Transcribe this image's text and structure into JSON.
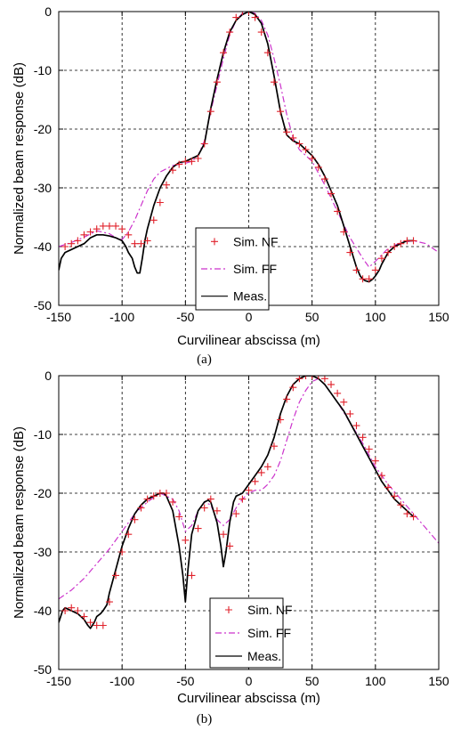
{
  "chart_data": [
    {
      "type": "line",
      "caption": "(a)",
      "xlabel": "Curvilinear abscissa (m)",
      "ylabel": "Normalized beam response (dB)",
      "xlim": [
        -150,
        150
      ],
      "ylim": [
        -50,
        0
      ],
      "xticks": [
        -150,
        -100,
        -50,
        0,
        50,
        100,
        150
      ],
      "yticks": [
        0,
        -10,
        -20,
        -30,
        -40,
        -50
      ],
      "grid": true,
      "legend_position": "bottom-center",
      "series": [
        {
          "name": "Sim. NF",
          "style": "markers-plus",
          "color": "#e0202a",
          "x": [
            -145,
            -140,
            -135,
            -130,
            -125,
            -120,
            -115,
            -110,
            -105,
            -100,
            -95,
            -90,
            -85,
            -80,
            -75,
            -70,
            -65,
            -60,
            -55,
            -50,
            -45,
            -40,
            -35,
            -30,
            -25,
            -20,
            -15,
            -10,
            -5,
            0,
            5,
            10,
            15,
            20,
            25,
            30,
            35,
            40,
            45,
            50,
            55,
            60,
            65,
            70,
            75,
            80,
            85,
            90,
            95,
            100,
            105,
            110,
            115,
            120,
            125,
            130
          ],
          "y": [
            -40,
            -39.5,
            -39,
            -38,
            -37.5,
            -37,
            -36.5,
            -36.5,
            -36.5,
            -37,
            -38,
            -39.5,
            -39.5,
            -39,
            -35.5,
            -32.5,
            -29.5,
            -27,
            -26,
            -25.5,
            -25.5,
            -25,
            -22.5,
            -17,
            -12,
            -7,
            -3.5,
            -1,
            0,
            0,
            -1,
            -3.5,
            -7,
            -12,
            -17,
            -20.5,
            -21.5,
            -22.5,
            -23.5,
            -25,
            -26.5,
            -28.5,
            -31,
            -34,
            -37.5,
            -41,
            -44,
            -45.5,
            -45.5,
            -44,
            -42,
            -41,
            -40,
            -39.5,
            -39,
            -39
          ]
        },
        {
          "name": "Sim. FF",
          "style": "dash-dot",
          "color": "#cc33cc",
          "x": [
            -150,
            -140,
            -130,
            -120,
            -110,
            -105,
            -100,
            -95,
            -90,
            -85,
            -80,
            -75,
            -70,
            -60,
            -50,
            -45,
            -40,
            -35,
            -30,
            -25,
            -20,
            -15,
            -10,
            -5,
            0,
            5,
            10,
            15,
            20,
            25,
            30,
            35,
            40,
            50,
            60,
            70,
            80,
            90,
            95,
            100,
            110,
            120,
            130,
            140,
            150
          ],
          "y": [
            -40,
            -39.3,
            -38.4,
            -37.3,
            -37.8,
            -38.5,
            -38.8,
            -37.5,
            -35.5,
            -33,
            -30.5,
            -28.5,
            -27.3,
            -26.2,
            -25.8,
            -25.5,
            -24.5,
            -22,
            -17,
            -12.5,
            -8,
            -4,
            -1.5,
            -0.3,
            0,
            -0.3,
            -1.5,
            -4,
            -8,
            -12.5,
            -17.5,
            -21.5,
            -23.5,
            -25.5,
            -29.5,
            -34,
            -38.5,
            -42,
            -43.5,
            -42.5,
            -40.3,
            -39.3,
            -39,
            -39.5,
            -41
          ]
        },
        {
          "name": "Meas.",
          "style": "solid",
          "color": "#000000",
          "x": [
            -150,
            -148,
            -145,
            -140,
            -135,
            -130,
            -125,
            -120,
            -115,
            -110,
            -105,
            -100,
            -97,
            -95,
            -92,
            -90,
            -88,
            -86,
            -84,
            -82,
            -80,
            -75,
            -70,
            -65,
            -60,
            -55,
            -50,
            -45,
            -40,
            -35,
            -30,
            -25,
            -20,
            -15,
            -10,
            -5,
            0,
            5,
            10,
            15,
            20,
            25,
            30,
            35,
            40,
            45,
            50,
            55,
            60,
            65,
            70,
            75,
            80,
            85,
            88,
            90,
            92,
            95,
            98,
            100,
            103,
            105,
            110,
            115,
            120,
            125,
            130
          ],
          "y": [
            -44,
            -42,
            -41,
            -40.5,
            -40,
            -39.5,
            -38.5,
            -38,
            -38,
            -38.2,
            -38.5,
            -39,
            -40,
            -41,
            -42,
            -43.5,
            -44.5,
            -44.5,
            -42,
            -39,
            -37,
            -33,
            -30,
            -28,
            -26.5,
            -25.7,
            -25.5,
            -25,
            -24.5,
            -22.5,
            -16.5,
            -11.5,
            -7,
            -3.5,
            -1.5,
            -0.5,
            0,
            -0.5,
            -2,
            -5.5,
            -11,
            -17,
            -21,
            -22,
            -22.5,
            -23.5,
            -24.5,
            -26,
            -28,
            -30.5,
            -33,
            -36.5,
            -40,
            -43.5,
            -45,
            -45.5,
            -45.8,
            -46,
            -45.5,
            -45,
            -44,
            -43,
            -41,
            -40,
            -39.5,
            -39,
            -39
          ]
        }
      ]
    },
    {
      "type": "line",
      "caption": "(b)",
      "xlabel": "Curvilinear abscissa (m)",
      "ylabel": "Normalized beam response (dB)",
      "xlim": [
        -150,
        150
      ],
      "ylim": [
        -50,
        0
      ],
      "xticks": [
        -150,
        -100,
        -50,
        0,
        50,
        100,
        150
      ],
      "yticks": [
        0,
        -10,
        -20,
        -30,
        -40,
        -50
      ],
      "grid": true,
      "legend_position": "bottom-left",
      "series": [
        {
          "name": "Sim. NF",
          "style": "markers-plus",
          "color": "#e0202a",
          "x": [
            -145,
            -140,
            -135,
            -130,
            -125,
            -120,
            -115,
            -110,
            -105,
            -100,
            -95,
            -90,
            -85,
            -80,
            -75,
            -70,
            -65,
            -60,
            -55,
            -50,
            -45,
            -40,
            -35,
            -30,
            -25,
            -20,
            -15,
            -10,
            -5,
            0,
            5,
            10,
            15,
            20,
            25,
            30,
            35,
            40,
            45,
            50,
            55,
            60,
            65,
            70,
            75,
            80,
            85,
            90,
            95,
            100,
            105,
            110,
            115,
            120,
            125,
            130
          ],
          "y": [
            -40,
            -39.5,
            -40,
            -41,
            -42,
            -42.5,
            -42.5,
            -38.5,
            -34,
            -30,
            -27,
            -24.5,
            -22.5,
            -21,
            -20.5,
            -20,
            -20,
            -21.5,
            -24,
            -28,
            -34,
            -26,
            -22.5,
            -21,
            -23,
            -27,
            -29,
            -23.5,
            -21,
            -19.5,
            -18,
            -16.5,
            -15.5,
            -12,
            -7.5,
            -4,
            -2,
            -0.5,
            0,
            0,
            0,
            -0.5,
            -1.5,
            -3,
            -4.5,
            -6.5,
            -8.5,
            -10.5,
            -12.5,
            -14.5,
            -17,
            -19,
            -20.5,
            -22,
            -23.5,
            -24
          ]
        },
        {
          "name": "Sim. FF",
          "style": "dash-dot",
          "color": "#cc33cc",
          "x": [
            -150,
            -140,
            -130,
            -120,
            -110,
            -100,
            -90,
            -80,
            -70,
            -60,
            -55,
            -50,
            -45,
            -40,
            -35,
            -30,
            -25,
            -20,
            -15,
            -10,
            -5,
            0,
            5,
            10,
            15,
            20,
            25,
            30,
            35,
            40,
            45,
            50,
            55,
            60,
            70,
            80,
            90,
            100,
            110,
            120,
            130,
            140,
            150
          ],
          "y": [
            -38,
            -36.5,
            -34.5,
            -32,
            -29.5,
            -26.5,
            -23.5,
            -21.5,
            -20,
            -21,
            -23,
            -26.5,
            -25.5,
            -23,
            -21.5,
            -22,
            -24.5,
            -25.5,
            -24.5,
            -22.5,
            -21,
            -20,
            -19.5,
            -19.5,
            -18.5,
            -17,
            -14.5,
            -11,
            -7.5,
            -4.5,
            -2.5,
            -1,
            -0.5,
            -1.5,
            -4.5,
            -8,
            -11.5,
            -15.5,
            -18.5,
            -21,
            -23.5,
            -26,
            -28.5
          ]
        },
        {
          "name": "Meas.",
          "style": "solid",
          "color": "#000000",
          "x": [
            -150,
            -147,
            -145,
            -140,
            -135,
            -130,
            -127,
            -125,
            -122,
            -120,
            -117,
            -115,
            -112,
            -110,
            -105,
            -100,
            -95,
            -90,
            -85,
            -80,
            -75,
            -70,
            -67,
            -65,
            -60,
            -55,
            -52,
            -50,
            -48,
            -45,
            -40,
            -35,
            -32,
            -30,
            -25,
            -22,
            -20,
            -18,
            -15,
            -12,
            -10,
            -5,
            0,
            5,
            10,
            15,
            20,
            25,
            30,
            35,
            40,
            45,
            50,
            55,
            60,
            65,
            70,
            75,
            80,
            85,
            90,
            95,
            100,
            105,
            110,
            115,
            120,
            125,
            130
          ],
          "y": [
            -42,
            -40,
            -39.5,
            -40,
            -40.5,
            -41.5,
            -42.5,
            -43,
            -42,
            -41,
            -40.5,
            -40,
            -39,
            -37,
            -33,
            -29,
            -26,
            -23.5,
            -22,
            -21,
            -20.5,
            -20,
            -20,
            -20.5,
            -23,
            -29,
            -34,
            -38.5,
            -33,
            -27,
            -23,
            -21.5,
            -21.2,
            -21.5,
            -25,
            -29,
            -32.5,
            -30,
            -25,
            -21.5,
            -20.5,
            -20,
            -18.5,
            -17,
            -15.5,
            -13.5,
            -10.5,
            -6.5,
            -3.5,
            -1.5,
            -0.5,
            0,
            0,
            -0.5,
            -1.5,
            -3,
            -4.5,
            -6,
            -8,
            -10,
            -12,
            -14,
            -16,
            -18,
            -19.5,
            -21,
            -22,
            -23,
            -24
          ]
        }
      ]
    }
  ]
}
